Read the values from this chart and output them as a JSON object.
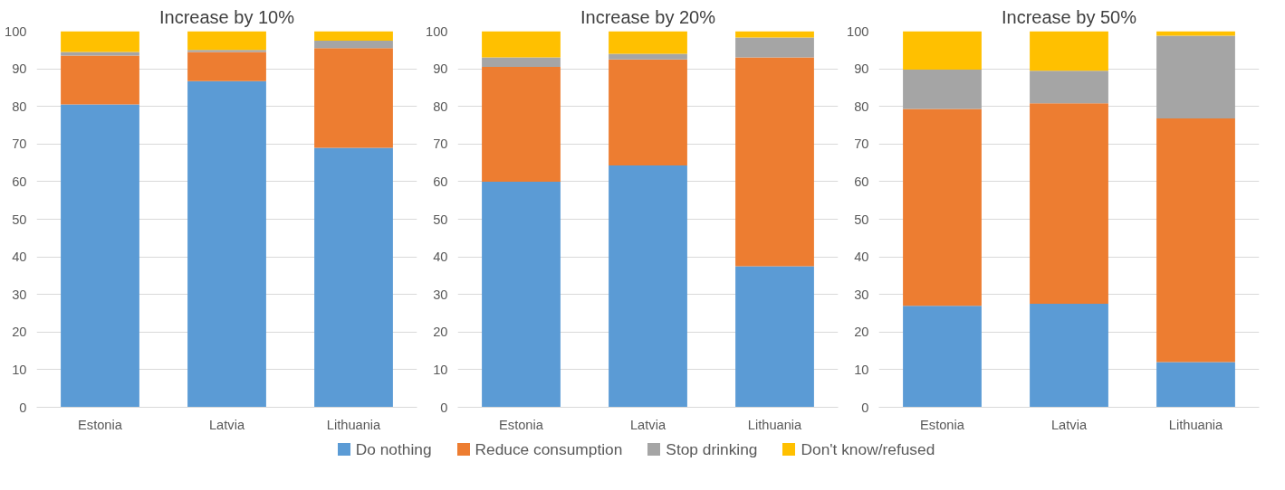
{
  "chart_data": [
    {
      "type": "bar",
      "title": "Increase by 10%",
      "categories": [
        "Estonia",
        "Latvia",
        "Lithuania"
      ],
      "stacked": true,
      "ylim": [
        0,
        100
      ],
      "yticks": [
        0,
        10,
        20,
        30,
        40,
        50,
        60,
        70,
        80,
        90,
        100
      ],
      "grid": "y",
      "legend": "bottom",
      "series": [
        {
          "name": "Do nothing",
          "color": "#5b9bd5",
          "values": [
            80.5,
            86.7,
            69
          ]
        },
        {
          "name": "Reduce consumption",
          "color": "#ed7d31",
          "values": [
            13,
            7.8,
            26.5
          ]
        },
        {
          "name": "Stop drinking",
          "color": "#a5a5a5",
          "values": [
            1,
            0.5,
            2
          ]
        },
        {
          "name": "Don't know/refused",
          "color": "#ffc000",
          "values": [
            5.5,
            5,
            2.5
          ]
        }
      ]
    },
    {
      "type": "bar",
      "title": "Increase by 20%",
      "categories": [
        "Estonia",
        "Latvia",
        "Lithuania"
      ],
      "stacked": true,
      "ylim": [
        0,
        100
      ],
      "yticks": [
        0,
        10,
        20,
        30,
        40,
        50,
        60,
        70,
        80,
        90,
        100
      ],
      "grid": "y",
      "series": [
        {
          "color": "#5b9bd5",
          "values": [
            60,
            64.3,
            37.5
          ]
        },
        {
          "color": "#ed7d31",
          "values": [
            30.5,
            28.2,
            55.5
          ]
        },
        {
          "color": "#a5a5a5",
          "values": [
            2.5,
            1.5,
            5.3
          ]
        },
        {
          "color": "#ffc000",
          "values": [
            7,
            6,
            1.7
          ]
        }
      ]
    },
    {
      "type": "bar",
      "title": "Increase by 50%",
      "categories": [
        "Estonia",
        "Latvia",
        "Lithuania"
      ],
      "stacked": true,
      "ylim": [
        0,
        100
      ],
      "yticks": [
        0,
        10,
        20,
        30,
        40,
        50,
        60,
        70,
        80,
        90,
        100
      ],
      "grid": "y",
      "series": [
        {
          "color": "#5b9bd5",
          "values": [
            27,
            27.5,
            12
          ]
        },
        {
          "color": "#ed7d31",
          "values": [
            52.3,
            53.3,
            64.8
          ]
        },
        {
          "color": "#a5a5a5",
          "values": [
            10.5,
            8.7,
            22
          ]
        },
        {
          "color": "#ffc000",
          "values": [
            10.2,
            10.5,
            1.2
          ]
        }
      ]
    }
  ]
}
